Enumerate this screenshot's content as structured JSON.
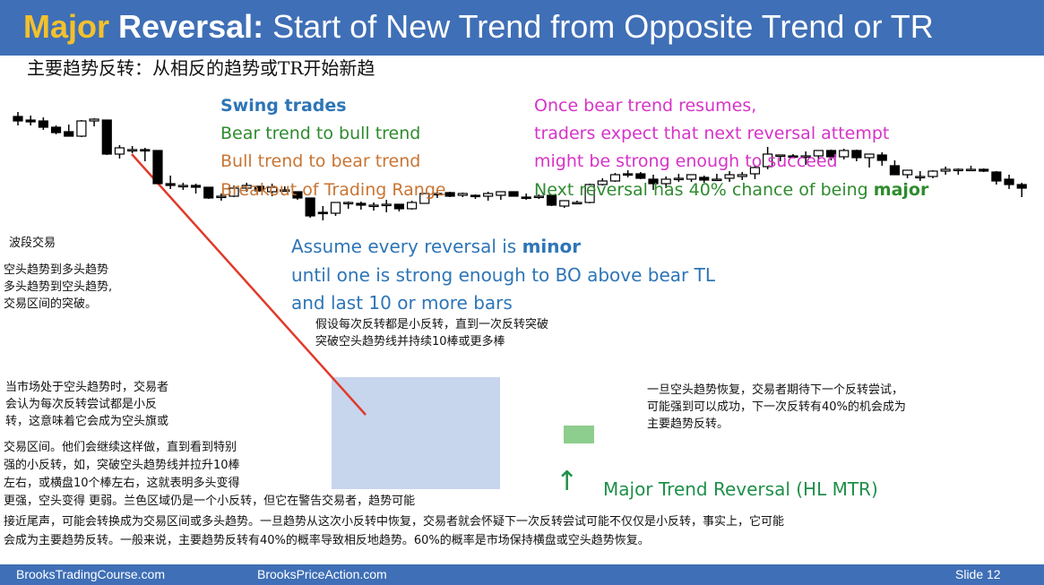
{
  "header": {
    "title_part1": "Major",
    "title_part2": "Reversal:",
    "title_part3": " Start of New Trend from Opposite Trend or TR",
    "subtitle": "主要趋势反转：从相反的趋势或TR开始新趋"
  },
  "swing_block": {
    "title": "Swing trades",
    "line1": "Bear trend to bull trend",
    "line2": "Bull trend to bear trend",
    "line3": "Breakout of Trading Range"
  },
  "bear_block": {
    "line1": "Once bear trend resumes,",
    "line2": "traders expect that next reversal attempt",
    "line3": "might be strong enough to succeed",
    "line4_pre": "Next reversal has 40% chance of being ",
    "line4_bold": "major"
  },
  "assume_block": {
    "line1_pre": "Assume every reversal is ",
    "line1_bold": "minor",
    "line2": "until one is strong enough to BO above bear TL",
    "line3": "and last 10 or more bars"
  },
  "cn_notes": {
    "swing_title": "波段交易",
    "swing_1": "空头趋势到多头趋势",
    "swing_2": "多头趋势到空头趋势,",
    "swing_3": "交易区间的突破。",
    "assume_1": "假设每次反转都是小反转，直到一次反转突破",
    "assume_2": "突破空头趋势线并持续10棒或更多棒",
    "bear_1": "一旦空头趋势恢复，交易者期待下一个反转尝试，",
    "bear_2": "可能强到可以成功，下一次反转有40%的机会成为",
    "bear_3": "主要趋势反转。",
    "market_1": "当市场处于空头趋势时，交易者",
    "market_2": "会认为每次反转尝试都是小反",
    "market_3": "转，这意味着它会成为空头旗或",
    "para_1": "交易区间。他们会继续这样做，直到看到特别",
    "para_2": "强的小反转，如，突破空头趋势线并拉升10棒",
    "para_3": "左右，或横盘10个棒左右，这就表明多头变得",
    "para_4": "更强，空头变得 更弱。兰色区域仍是一个小反转，但它在警告交易者，趋势可能",
    "para_5": "接近尾声，可能会转换成为交易区间或多头趋势。一旦趋势从这次小反转中恢复，交易者就会怀疑下一次反转尝试可能不仅仅是小反转，事实上，它可能",
    "para_6": "会成为主要趋势反转。一般来说，主要趋势反转有40%的概率导致相反地趋势。60%的概率是市场保持横盘或空头趋势恢复。"
  },
  "annotation": {
    "major_label": "Major Trend Reversal (HL MTR)",
    "arrow_glyph": "↑"
  },
  "footer": {
    "left": "BrooksTradingCourse.com",
    "center": "BrooksPriceAction.com",
    "right": "Slide  12"
  },
  "colors": {
    "header_bg": "#3f6fb6",
    "title_accent": "#f3c12d",
    "swing_title": "#2e75b6",
    "bear_to_bull": "#2e8b2e",
    "bull_to_bear": "#c87533",
    "breakout": "#c87533",
    "magenta": "#d633c8",
    "assume_blue": "#2e75b6",
    "major_green": "#1f8f4a",
    "trendline": "#e03a2a",
    "tr_box": "#b4c7e7",
    "hl_box": "#70c070"
  },
  "chart_data": {
    "type": "candlestick",
    "series": [
      {
        "o": 570,
        "h": 575,
        "l": 560,
        "c": 565
      },
      {
        "o": 566,
        "h": 571,
        "l": 560,
        "c": 564
      },
      {
        "o": 565,
        "h": 569,
        "l": 555,
        "c": 558
      },
      {
        "o": 558,
        "h": 560,
        "l": 550,
        "c": 552
      },
      {
        "o": 553,
        "h": 561,
        "l": 548,
        "c": 548
      },
      {
        "o": 548,
        "h": 566,
        "l": 547,
        "c": 565
      },
      {
        "o": 565,
        "h": 568,
        "l": 559,
        "c": 567
      },
      {
        "o": 566,
        "h": 566,
        "l": 527,
        "c": 528
      },
      {
        "o": 528,
        "h": 538,
        "l": 523,
        "c": 535
      },
      {
        "o": 533,
        "h": 537,
        "l": 529,
        "c": 533
      },
      {
        "o": 533,
        "h": 535,
        "l": 520,
        "c": 532
      },
      {
        "o": 532,
        "h": 532,
        "l": 495,
        "c": 495
      },
      {
        "o": 495,
        "h": 504,
        "l": 489,
        "c": 493
      },
      {
        "o": 493,
        "h": 496,
        "l": 488,
        "c": 493
      },
      {
        "o": 493,
        "h": 495,
        "l": 484,
        "c": 491
      },
      {
        "o": 491,
        "h": 491,
        "l": 478,
        "c": 479
      },
      {
        "o": 481,
        "h": 484,
        "l": 476,
        "c": 481
      },
      {
        "o": 481,
        "h": 493,
        "l": 480,
        "c": 490
      },
      {
        "o": 490,
        "h": 496,
        "l": 486,
        "c": 493
      },
      {
        "o": 492,
        "h": 492,
        "l": 486,
        "c": 487
      },
      {
        "o": 486,
        "h": 495,
        "l": 481,
        "c": 491
      },
      {
        "o": 488,
        "h": 492,
        "l": 486,
        "c": 488
      },
      {
        "o": 486,
        "h": 486,
        "l": 477,
        "c": 479
      },
      {
        "o": 479,
        "h": 479,
        "l": 457,
        "c": 459
      },
      {
        "o": 463,
        "h": 470,
        "l": 454,
        "c": 462
      },
      {
        "o": 462,
        "h": 474,
        "l": 459,
        "c": 474
      },
      {
        "o": 474,
        "h": 475,
        "l": 467,
        "c": 474
      },
      {
        "o": 473,
        "h": 475,
        "l": 466,
        "c": 471
      },
      {
        "o": 471,
        "h": 474,
        "l": 465,
        "c": 471
      },
      {
        "o": 472,
        "h": 477,
        "l": 463,
        "c": 472
      },
      {
        "o": 472,
        "h": 472,
        "l": 464,
        "c": 467
      },
      {
        "o": 467,
        "h": 476,
        "l": 466,
        "c": 474
      },
      {
        "o": 473,
        "h": 484,
        "l": 473,
        "c": 484
      },
      {
        "o": 483,
        "h": 487,
        "l": 479,
        "c": 484
      },
      {
        "o": 485,
        "h": 486,
        "l": 480,
        "c": 481
      },
      {
        "o": 482,
        "h": 485,
        "l": 480,
        "c": 484
      },
      {
        "o": 482,
        "h": 483,
        "l": 478,
        "c": 481
      },
      {
        "o": 481,
        "h": 486,
        "l": 476,
        "c": 484
      },
      {
        "o": 482,
        "h": 486,
        "l": 477,
        "c": 486
      },
      {
        "o": 486,
        "h": 486,
        "l": 481,
        "c": 481
      },
      {
        "o": 480,
        "h": 484,
        "l": 477,
        "c": 479
      },
      {
        "o": 481,
        "h": 483,
        "l": 478,
        "c": 481
      },
      {
        "o": 482,
        "h": 482,
        "l": 470,
        "c": 471
      },
      {
        "o": 470,
        "h": 475,
        "l": 468,
        "c": 476
      },
      {
        "o": 474,
        "h": 476,
        "l": 472,
        "c": 474
      },
      {
        "o": 474,
        "h": 495,
        "l": 473,
        "c": 494
      },
      {
        "o": 494,
        "h": 501,
        "l": 493,
        "c": 498
      },
      {
        "o": 498,
        "h": 507,
        "l": 497,
        "c": 505
      },
      {
        "o": 506,
        "h": 510,
        "l": 502,
        "c": 505
      },
      {
        "o": 506,
        "h": 508,
        "l": 500,
        "c": 501
      },
      {
        "o": 500,
        "h": 505,
        "l": 488,
        "c": 495
      },
      {
        "o": 495,
        "h": 503,
        "l": 490,
        "c": 500
      },
      {
        "o": 500,
        "h": 506,
        "l": 497,
        "c": 501
      },
      {
        "o": 500,
        "h": 505,
        "l": 497,
        "c": 505
      },
      {
        "o": 502,
        "h": 504,
        "l": 496,
        "c": 499
      },
      {
        "o": 500,
        "h": 506,
        "l": 499,
        "c": 500
      },
      {
        "o": 501,
        "h": 509,
        "l": 497,
        "c": 505
      },
      {
        "o": 503,
        "h": 508,
        "l": 499,
        "c": 505
      },
      {
        "o": 506,
        "h": 516,
        "l": 500,
        "c": 513
      },
      {
        "o": 514,
        "h": 536,
        "l": 511,
        "c": 528
      },
      {
        "o": 526,
        "h": 526,
        "l": 520,
        "c": 527
      },
      {
        "o": 526,
        "h": 528,
        "l": 524,
        "c": 525
      },
      {
        "o": 526,
        "h": 531,
        "l": 516,
        "c": 526
      },
      {
        "o": 526,
        "h": 531,
        "l": 521,
        "c": 532
      },
      {
        "o": 532,
        "h": 533,
        "l": 521,
        "c": 525
      },
      {
        "o": 525,
        "h": 534,
        "l": 522,
        "c": 532
      },
      {
        "o": 532,
        "h": 533,
        "l": 520,
        "c": 524
      },
      {
        "o": 524,
        "h": 527,
        "l": 513,
        "c": 528
      },
      {
        "o": 527,
        "h": 530,
        "l": 515,
        "c": 521
      },
      {
        "o": 515,
        "h": 521,
        "l": 511,
        "c": 505
      },
      {
        "o": 505,
        "h": 510,
        "l": 501,
        "c": 510
      },
      {
        "o": 502,
        "h": 509,
        "l": 498,
        "c": 503
      },
      {
        "o": 503,
        "h": 510,
        "l": 501,
        "c": 509
      },
      {
        "o": 509,
        "h": 514,
        "l": 505,
        "c": 511
      },
      {
        "o": 511,
        "h": 512,
        "l": 505,
        "c": 511
      },
      {
        "o": 511,
        "h": 515,
        "l": 510,
        "c": 511
      },
      {
        "o": 511,
        "h": 512,
        "l": 508,
        "c": 509
      },
      {
        "o": 508,
        "h": 509,
        "l": 494,
        "c": 498
      },
      {
        "o": 500,
        "h": 505,
        "l": 489,
        "c": 494
      },
      {
        "o": 494,
        "h": 496,
        "l": 480,
        "c": 490
      }
    ]
  }
}
